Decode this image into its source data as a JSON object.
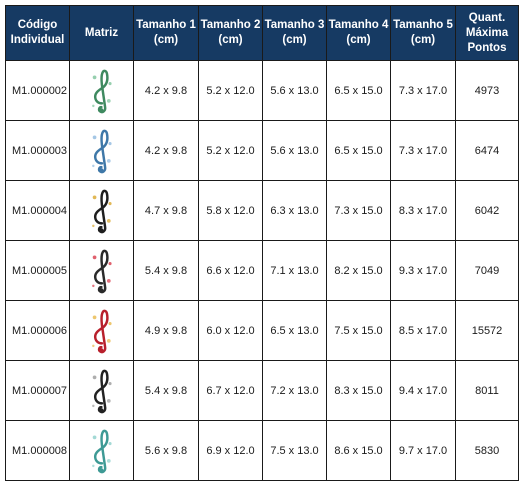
{
  "table": {
    "headers": [
      {
        "line1": "Código",
        "line2": "Individual",
        "line3": ""
      },
      {
        "line1": "Matriz",
        "line2": "",
        "line3": ""
      },
      {
        "line1": "Tamanho 1",
        "line2": "(cm)",
        "line3": ""
      },
      {
        "line1": "Tamanho 2",
        "line2": "(cm)",
        "line3": ""
      },
      {
        "line1": "Tamanho 3",
        "line2": "(cm)",
        "line3": ""
      },
      {
        "line1": "Tamanho 4",
        "line2": "(cm)",
        "line3": ""
      },
      {
        "line1": "Tamanho 5",
        "line2": "(cm)",
        "line3": ""
      },
      {
        "line1": "Quant.",
        "line2": "Máxima",
        "line3": "Pontos"
      }
    ],
    "rows": [
      {
        "code": "M1.000002",
        "image": "green-treble-clef-icon",
        "color": "#3f8a60",
        "accent": "#7cc39a",
        "s1": "4.2 x 9.8",
        "s2": "5.2 x 12.0",
        "s3": "5.6 x 13.0",
        "s4": "6.5 x 15.0",
        "s5": "7.3 x 17.0",
        "points": "4973"
      },
      {
        "code": "M1.000003",
        "image": "blue-treble-clef-icon",
        "color": "#3f78a8",
        "accent": "#8fb9de",
        "s1": "4.2 x 9.8",
        "s2": "5.2 x 12.0",
        "s3": "5.6 x 13.0",
        "s4": "6.5 x 15.0",
        "s5": "7.3 x 17.0",
        "points": "6474"
      },
      {
        "code": "M1.000004",
        "image": "black-gold-treble-clef-icon",
        "color": "#1e1e1e",
        "accent": "#d9a62c",
        "s1": "4.7 x 9.8",
        "s2": "5.8 x 12.0",
        "s3": "6.3 x 13.0",
        "s4": "7.3 x 15.0",
        "s5": "8.3 x 17.0",
        "points": "6042"
      },
      {
        "code": "M1.000005",
        "image": "piano-red-treble-clef-icon",
        "color": "#2a2a2a",
        "accent": "#d8394a",
        "s1": "5.4 x 9.8",
        "s2": "6.6 x 12.0",
        "s3": "7.1 x 13.0",
        "s4": "8.2 x 15.0",
        "s5": "9.3 x 17.0",
        "points": "7049"
      },
      {
        "code": "M1.000006",
        "image": "red-floral-treble-clef-icon",
        "color": "#b8202c",
        "accent": "#e8b84a",
        "s1": "4.9 x 9.8",
        "s2": "6.0 x 12.0",
        "s3": "6.5 x 13.0",
        "s4": "7.5 x 15.0",
        "s5": "8.5 x 17.0",
        "points": "15572"
      },
      {
        "code": "M1.000007",
        "image": "grey-black-treble-clef-icon",
        "color": "#222222",
        "accent": "#9a9a9a",
        "s1": "5.4 x 9.8",
        "s2": "6.7 x 12.0",
        "s3": "7.2 x 13.0",
        "s4": "8.3 x 15.0",
        "s5": "9.4 x 17.0",
        "points": "8011"
      },
      {
        "code": "M1.000008",
        "image": "teal-treble-clef-icon",
        "color": "#3e9a95",
        "accent": "#8ccfcb",
        "s1": "5.6 x 9.8",
        "s2": "6.9 x 12.0",
        "s3": "7.5 x 13.0",
        "s4": "8.6 x 15.0",
        "s5": "9.7 x 17.0",
        "points": "5830"
      }
    ]
  },
  "colors": {
    "header_bg": "#163a63",
    "header_text": "#ffffff",
    "border": "#1a1a1a"
  }
}
